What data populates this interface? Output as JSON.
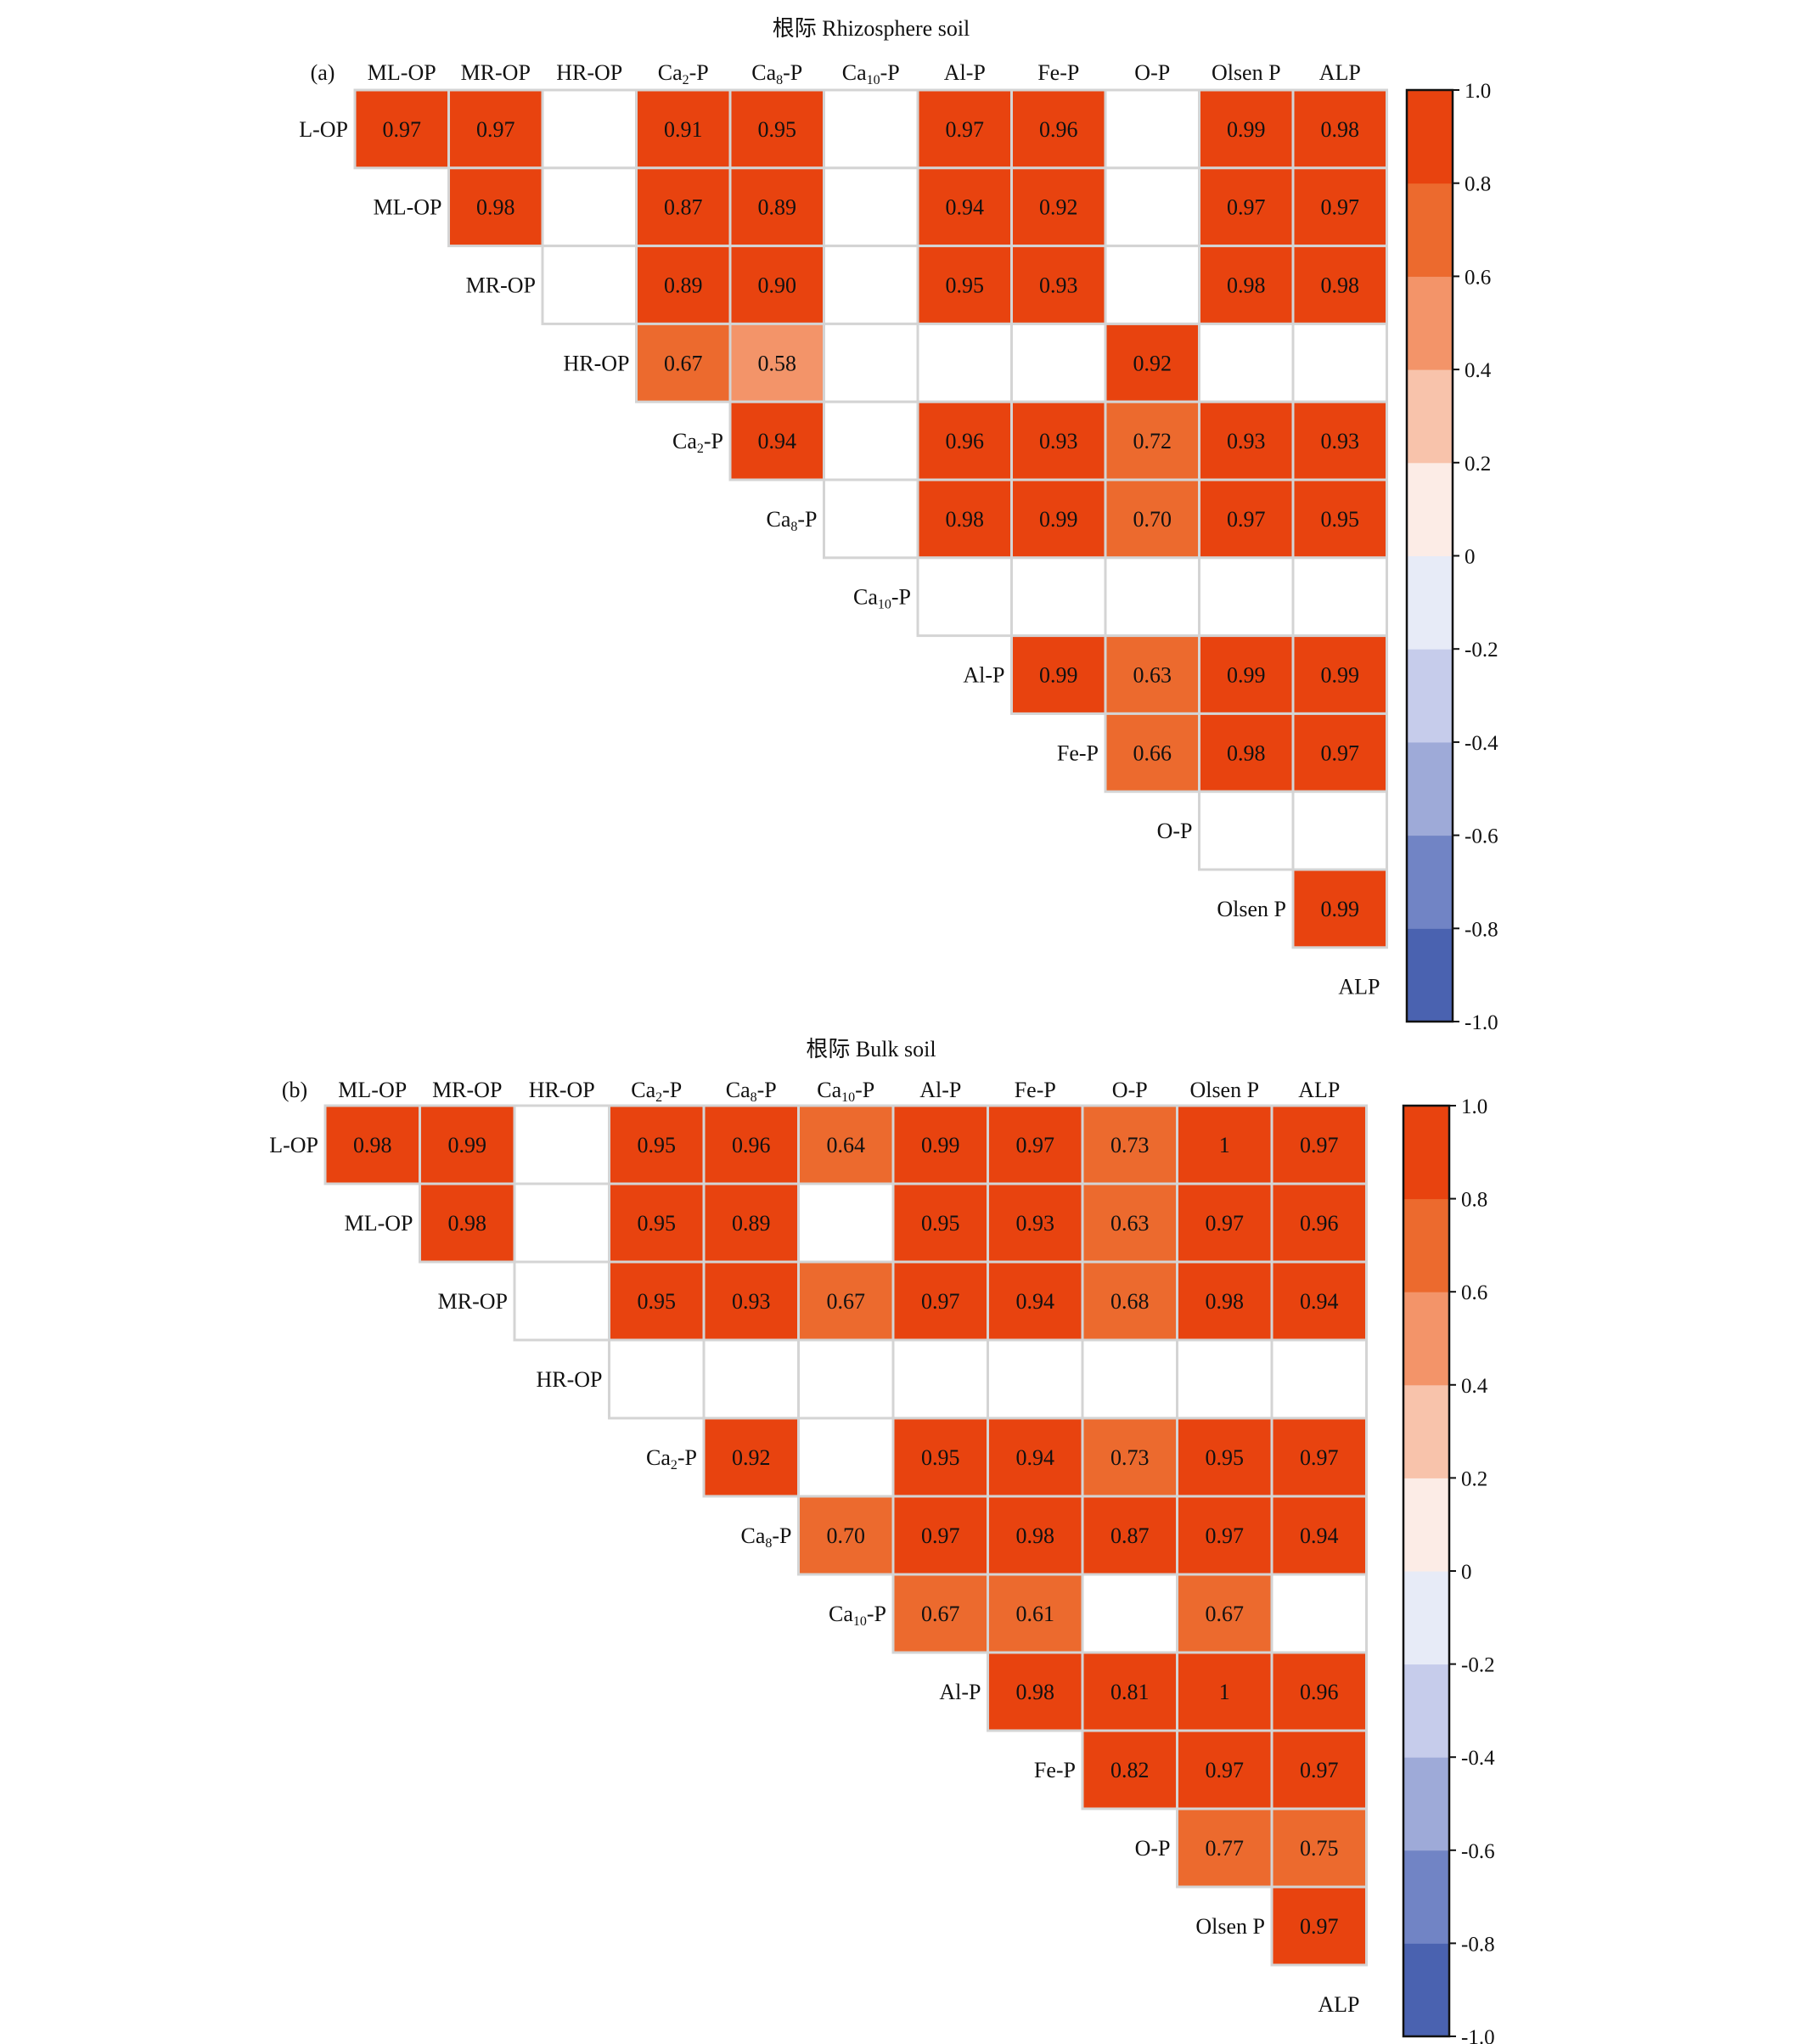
{
  "panels": [
    {
      "label": "(a)",
      "title": "根际 Rhizosphere soil",
      "colorbar_ticks": [
        "1.0",
        "0.8",
        "0.6",
        "0.4",
        "0.2",
        "0",
        "-0.2",
        "-0.4",
        "-0.6",
        "-0.8",
        "-1.0"
      ]
    },
    {
      "label": "(b)",
      "title": "根际 Bulk soil",
      "colorbar_ticks": [
        "1.0",
        "0.8",
        "0.6",
        "0.4",
        "0.2",
        "0",
        "-0.2",
        "-0.4",
        "-0.6",
        "-0.8",
        "-1.0"
      ]
    }
  ],
  "colors": {
    "scale": [
      "#4a62b0",
      "#7184c5",
      "#9eaad8",
      "#c6cceb",
      "#e7ebf7",
      "#fcece6",
      "#f8c3ab",
      "#f39469",
      "#ec6a2e",
      "#e8430f"
    ],
    "grid_line": "#d4d4d4",
    "text": "#111111"
  },
  "chart_data": [
    {
      "type": "heatmap",
      "title": "根际 Rhizosphere soil",
      "column_labels": [
        "ML-OP",
        "MR-OP",
        "HR-OP",
        "Ca2-P",
        "Ca8-P",
        "Ca10-P",
        "Al-P",
        "Fe-P",
        "O-P",
        "Olsen P",
        "ALP"
      ],
      "row_labels": [
        "L-OP",
        "ML-OP",
        "MR-OP",
        "HR-OP",
        "Ca2-P",
        "Ca8-P",
        "Ca10-P",
        "Al-P",
        "Fe-P",
        "O-P",
        "Olsen P",
        "ALP"
      ],
      "value_range": [
        -1.0,
        1.0
      ],
      "values": [
        [
          0.97,
          0.97,
          null,
          0.91,
          0.95,
          null,
          0.97,
          0.96,
          null,
          0.99,
          0.98
        ],
        [
          null,
          0.98,
          null,
          0.87,
          0.89,
          null,
          0.94,
          0.92,
          null,
          0.97,
          0.97
        ],
        [
          null,
          null,
          null,
          0.89,
          0.9,
          null,
          0.95,
          0.93,
          null,
          0.98,
          0.98
        ],
        [
          null,
          null,
          null,
          0.67,
          0.58,
          null,
          null,
          null,
          0.92,
          null,
          null
        ],
        [
          null,
          null,
          null,
          null,
          0.94,
          null,
          0.96,
          0.93,
          0.72,
          0.93,
          0.93
        ],
        [
          null,
          null,
          null,
          null,
          null,
          null,
          0.98,
          0.99,
          0.7,
          0.97,
          0.95
        ],
        [
          null,
          null,
          null,
          null,
          null,
          null,
          null,
          null,
          null,
          null,
          null
        ],
        [
          null,
          null,
          null,
          null,
          null,
          null,
          null,
          0.99,
          0.63,
          0.99,
          0.99
        ],
        [
          null,
          null,
          null,
          null,
          null,
          null,
          null,
          null,
          0.66,
          0.98,
          0.97
        ],
        [
          null,
          null,
          null,
          null,
          null,
          null,
          null,
          null,
          null,
          null,
          null
        ],
        [
          null,
          null,
          null,
          null,
          null,
          null,
          null,
          null,
          null,
          null,
          0.99
        ]
      ],
      "value_labels": [
        [
          "0.97",
          "0.97",
          "",
          "0.91",
          "0.95",
          "",
          "0.97",
          "0.96",
          "",
          "0.99",
          "0.98"
        ],
        [
          "",
          "0.98",
          "",
          "0.87",
          "0.89",
          "",
          "0.94",
          "0.92",
          "",
          "0.97",
          "0.97"
        ],
        [
          "",
          "",
          "",
          "0.89",
          "0.90",
          "",
          "0.95",
          "0.93",
          "",
          "0.98",
          "0.98"
        ],
        [
          "",
          "",
          "",
          "0.67",
          "0.58",
          "",
          "",
          "",
          "0.92",
          "",
          ""
        ],
        [
          "",
          "",
          "",
          "",
          "0.94",
          "",
          "0.96",
          "0.93",
          "0.72",
          "0.93",
          "0.93"
        ],
        [
          "",
          "",
          "",
          "",
          "",
          "",
          "0.98",
          "0.99",
          "0.70",
          "0.97",
          "0.95"
        ],
        [
          "",
          "",
          "",
          "",
          "",
          "",
          "",
          "",
          "",
          "",
          ""
        ],
        [
          "",
          "",
          "",
          "",
          "",
          "",
          "",
          "0.99",
          "0.63",
          "0.99",
          "0.99"
        ],
        [
          "",
          "",
          "",
          "",
          "",
          "",
          "",
          "",
          "0.66",
          "0.98",
          "0.97"
        ],
        [
          "",
          "",
          "",
          "",
          "",
          "",
          "",
          "",
          "",
          "",
          ""
        ],
        [
          "",
          "",
          "",
          "",
          "",
          "",
          "",
          "",
          "",
          "",
          "0.99"
        ]
      ]
    },
    {
      "type": "heatmap",
      "title": "根际 Bulk soil",
      "column_labels": [
        "ML-OP",
        "MR-OP",
        "HR-OP",
        "Ca2-P",
        "Ca8-P",
        "Ca10-P",
        "Al-P",
        "Fe-P",
        "O-P",
        "Olsen P",
        "ALP"
      ],
      "row_labels": [
        "L-OP",
        "ML-OP",
        "MR-OP",
        "HR-OP",
        "Ca2-P",
        "Ca8-P",
        "Ca10-P",
        "Al-P",
        "Fe-P",
        "O-P",
        "Olsen P",
        "ALP"
      ],
      "value_range": [
        -1.0,
        1.0
      ],
      "values": [
        [
          0.98,
          0.99,
          null,
          0.95,
          0.96,
          0.64,
          0.99,
          0.97,
          0.73,
          1,
          0.97
        ],
        [
          null,
          0.98,
          null,
          0.95,
          0.89,
          null,
          0.95,
          0.93,
          0.63,
          0.97,
          0.96
        ],
        [
          null,
          null,
          null,
          0.95,
          0.93,
          0.67,
          0.97,
          0.94,
          0.68,
          0.98,
          0.94
        ],
        [
          null,
          null,
          null,
          null,
          null,
          null,
          null,
          null,
          null,
          null,
          null
        ],
        [
          null,
          null,
          null,
          null,
          0.92,
          null,
          0.95,
          0.94,
          0.73,
          0.95,
          0.97
        ],
        [
          null,
          null,
          null,
          null,
          null,
          0.7,
          0.97,
          0.98,
          0.87,
          0.97,
          0.94
        ],
        [
          null,
          null,
          null,
          null,
          null,
          null,
          0.67,
          0.61,
          null,
          0.67,
          null
        ],
        [
          null,
          null,
          null,
          null,
          null,
          null,
          null,
          0.98,
          0.81,
          1,
          0.96
        ],
        [
          null,
          null,
          null,
          null,
          null,
          null,
          null,
          null,
          0.82,
          0.97,
          0.97
        ],
        [
          null,
          null,
          null,
          null,
          null,
          null,
          null,
          null,
          null,
          0.77,
          0.75
        ],
        [
          null,
          null,
          null,
          null,
          null,
          null,
          null,
          null,
          null,
          null,
          0.97
        ]
      ],
      "value_labels": [
        [
          "0.98",
          "0.99",
          "",
          "0.95",
          "0.96",
          "0.64",
          "0.99",
          "0.97",
          "0.73",
          "1",
          "0.97"
        ],
        [
          "",
          "0.98",
          "",
          "0.95",
          "0.89",
          "",
          "0.95",
          "0.93",
          "0.63",
          "0.97",
          "0.96"
        ],
        [
          "",
          "",
          "",
          "0.95",
          "0.93",
          "0.67",
          "0.97",
          "0.94",
          "0.68",
          "0.98",
          "0.94"
        ],
        [
          "",
          "",
          "",
          "",
          "",
          "",
          "",
          "",
          "",
          "",
          ""
        ],
        [
          "",
          "",
          "",
          "",
          "0.92",
          "",
          "0.95",
          "0.94",
          "0.73",
          "0.95",
          "0.97"
        ],
        [
          "",
          "",
          "",
          "",
          "",
          "0.70",
          "0.97",
          "0.98",
          "0.87",
          "0.97",
          "0.94"
        ],
        [
          "",
          "",
          "",
          "",
          "",
          "",
          "0.67",
          "0.61",
          "",
          "0.67",
          ""
        ],
        [
          "",
          "",
          "",
          "",
          "",
          "",
          "",
          "0.98",
          "0.81",
          "1",
          "0.96"
        ],
        [
          "",
          "",
          "",
          "",
          "",
          "",
          "",
          "",
          "0.82",
          "0.97",
          "0.97"
        ],
        [
          "",
          "",
          "",
          "",
          "",
          "",
          "",
          "",
          "",
          "0.77",
          "0.75"
        ],
        [
          "",
          "",
          "",
          "",
          "",
          "",
          "",
          "",
          "",
          "",
          "0.97"
        ]
      ]
    }
  ]
}
